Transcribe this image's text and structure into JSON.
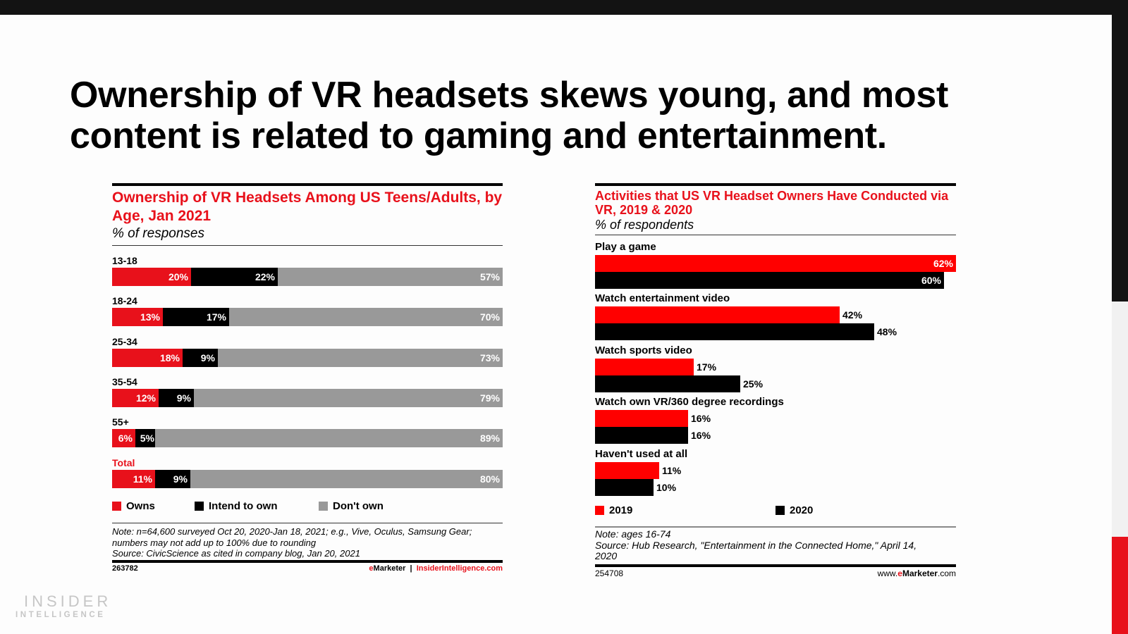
{
  "slide": {
    "headline": "Ownership of VR headsets skews young, and most content is related to gaming and entertainment.",
    "logo": {
      "line1": "INSIDER",
      "line2": "INTELLIGENCE"
    },
    "colors": {
      "red": "#e8111b",
      "black": "#000000",
      "gray": "#999999",
      "bright_red": "#ff0000"
    }
  },
  "chart_data": [
    {
      "type": "bar",
      "stacked": true,
      "orientation": "horizontal",
      "title": "Ownership of VR Headsets Among US Teens/Adults, by Age, Jan 2021",
      "subtitle": "% of responses",
      "categories": [
        "13-18",
        "18-24",
        "25-34",
        "35-54",
        "55+",
        "Total"
      ],
      "series": [
        {
          "name": "Owns",
          "color": "#e8111b",
          "values": [
            20,
            13,
            18,
            12,
            6,
            11
          ],
          "labels": [
            "20%",
            "13%",
            "18%",
            "12%",
            "6%",
            "11%"
          ]
        },
        {
          "name": "Intend to own",
          "color": "#000000",
          "values": [
            22,
            17,
            9,
            9,
            5,
            9
          ],
          "labels": [
            "22%",
            "17%",
            "9%",
            "9%",
            "5%",
            "9%"
          ]
        },
        {
          "name": "Don't own",
          "color": "#999999",
          "values": [
            57,
            70,
            73,
            79,
            89,
            80
          ],
          "labels": [
            "57%",
            "70%",
            "73%",
            "79%",
            "89%",
            "80%"
          ]
        }
      ],
      "legend_position": "bottom",
      "note_lines": [
        "Note: n=64,600 surveyed Oct 20, 2020-Jan 18, 2021; e.g., Vive, Oculus, Samsung Gear;",
        "numbers may not add up to 100% due to rounding",
        "Source: CivicScience as cited in company blog, Jan 20, 2021"
      ],
      "chart_id": "263782",
      "brand_e": "e",
      "brand_rest": "Marketer",
      "brand_sep": "|",
      "brand_site": "InsiderIntelligence.com"
    },
    {
      "type": "bar",
      "orientation": "horizontal",
      "title": "Activities that US VR Headset Owners Have Conducted via VR, 2019 & 2020",
      "subtitle": "% of respondents",
      "categories": [
        "Play a game",
        "Watch entertainment video",
        "Watch sports video",
        "Watch own VR/360 degree recordings",
        "Haven't used at all"
      ],
      "series": [
        {
          "name": "2019",
          "color": "#ff0000",
          "values": [
            62,
            42,
            17,
            16,
            11
          ],
          "labels": [
            "62%",
            "42%",
            "17%",
            "16%",
            "11%"
          ]
        },
        {
          "name": "2020",
          "color": "#000000",
          "values": [
            60,
            48,
            25,
            16,
            10
          ],
          "labels": [
            "60%",
            "48%",
            "25%",
            "16%",
            "10%"
          ]
        }
      ],
      "xlim": [
        0,
        62
      ],
      "legend_position": "bottom",
      "note_lines": [
        "Note: ages 16-74",
        "Source: Hub Research, \"Entertainment in the Connected Home,\" April 14,",
        "2020"
      ],
      "chart_id": "254708",
      "brand_pre": "www.",
      "brand_e": "e",
      "brand_rest": "Marketer",
      "brand_post": ".com"
    }
  ]
}
